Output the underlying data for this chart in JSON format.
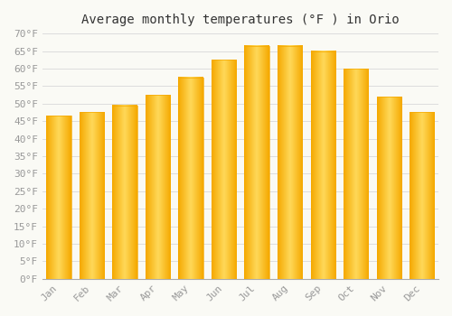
{
  "title": "Average monthly temperatures (°F ) in Orio",
  "months": [
    "Jan",
    "Feb",
    "Mar",
    "Apr",
    "May",
    "Jun",
    "Jul",
    "Aug",
    "Sep",
    "Oct",
    "Nov",
    "Dec"
  ],
  "values": [
    46.5,
    47.5,
    49.5,
    52.5,
    57.5,
    62.5,
    66.5,
    66.5,
    65.0,
    60.0,
    52.0,
    47.5
  ],
  "bar_color_edge": "#F5A800",
  "bar_color_center": "#FFD95A",
  "background_color": "#FAFAF5",
  "grid_color": "#DDDDDD",
  "ylim": [
    0,
    70
  ],
  "yticks": [
    0,
    5,
    10,
    15,
    20,
    25,
    30,
    35,
    40,
    45,
    50,
    55,
    60,
    65,
    70
  ],
  "title_fontsize": 10,
  "tick_fontsize": 8,
  "tick_color": "#999999",
  "font_family": "monospace",
  "figsize": [
    5.0,
    3.5
  ],
  "dpi": 100
}
